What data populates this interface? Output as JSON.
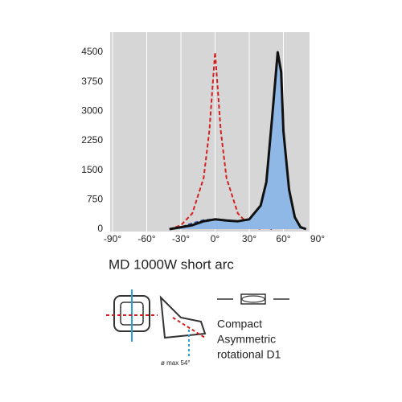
{
  "chart_data": {
    "type": "line",
    "title": "MD 1000W short arc",
    "xlim": [
      -90,
      90
    ],
    "xticks": [
      {
        "value": -90,
        "label": "-90°"
      },
      {
        "value": -60,
        "label": "-60°"
      },
      {
        "value": -30,
        "label": "-30°"
      },
      {
        "value": 0,
        "label": "0°"
      },
      {
        "value": 30,
        "label": "30°"
      },
      {
        "value": 60,
        "label": "60°"
      },
      {
        "value": 90,
        "label": "90°"
      }
    ],
    "ylim": [
      0,
      5000
    ],
    "yticks": [
      0,
      750,
      1500,
      2250,
      3000,
      3750,
      4500
    ],
    "grid": true,
    "series": [
      {
        "color": "#d42020",
        "dash": true,
        "x": [
          -40,
          -30,
          -20,
          -10,
          -5,
          0,
          5,
          10,
          20,
          30,
          40
        ],
        "values": [
          0,
          100,
          400,
          1300,
          2500,
          4500,
          2500,
          1300,
          400,
          100,
          0
        ]
      },
      {
        "color": "#2a4a9a",
        "dash": true,
        "x": [
          -40,
          -30,
          -20,
          -10,
          0,
          10,
          20,
          30,
          40,
          50
        ],
        "values": [
          0,
          50,
          150,
          230,
          250,
          220,
          200,
          200,
          100,
          0
        ]
      },
      {
        "color": "#111111",
        "dash": false,
        "fill": "#8fb8e6",
        "x": [
          -40,
          -30,
          -20,
          -10,
          0,
          10,
          20,
          30,
          40,
          45,
          50,
          55,
          58,
          60,
          65,
          70,
          75,
          80
        ],
        "values": [
          0,
          50,
          100,
          200,
          250,
          220,
          200,
          250,
          600,
          1200,
          2800,
          4500,
          4000,
          2500,
          1000,
          300,
          50,
          0
        ]
      }
    ],
    "annotations": [
      "Compact",
      "Asymmetric",
      "rotational D1",
      "ø max 54°"
    ]
  }
}
